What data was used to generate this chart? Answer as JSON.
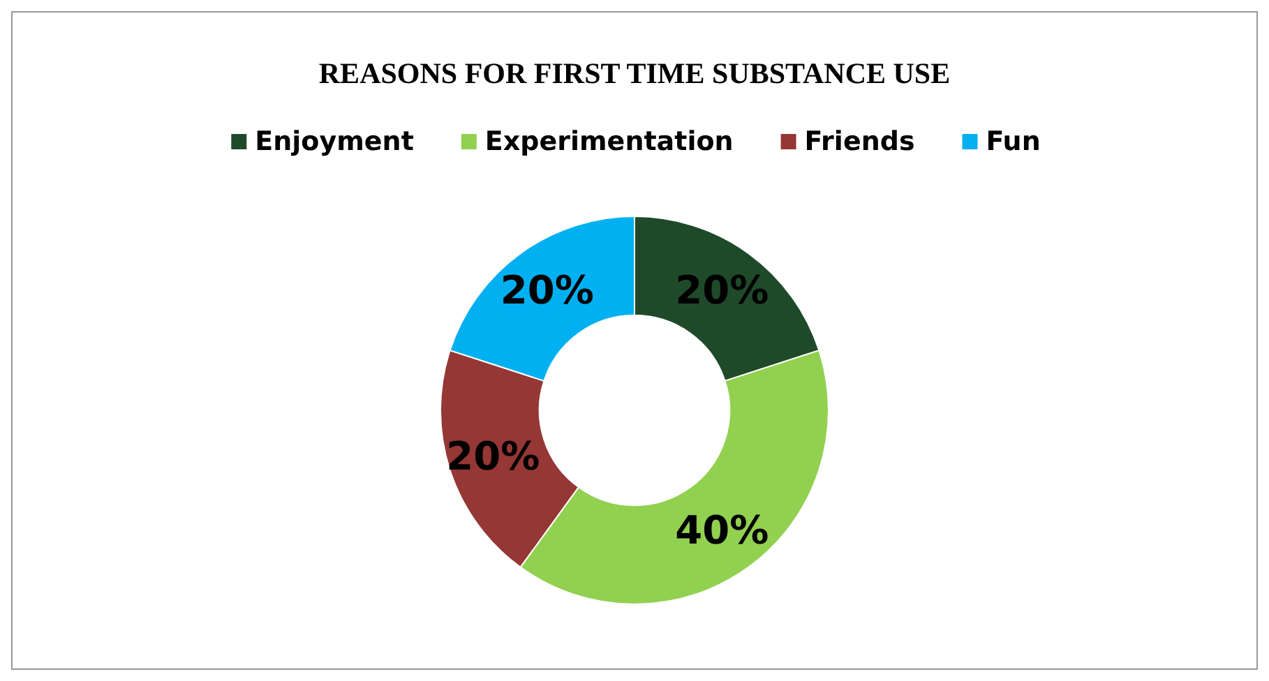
{
  "chart_data": {
    "type": "donut",
    "title": "REASONS FOR FIRST TIME SUBSTANCE USE",
    "categories": [
      "Enjoyment",
      "Experimentation",
      "Friends",
      "Fun"
    ],
    "values": [
      20,
      40,
      20,
      20
    ],
    "value_labels": [
      "20%",
      "40%",
      "20%",
      "20%"
    ],
    "colors": [
      "#1f4a2a",
      "#92d050",
      "#953735",
      "#00b0f0"
    ],
    "legend": "top"
  }
}
